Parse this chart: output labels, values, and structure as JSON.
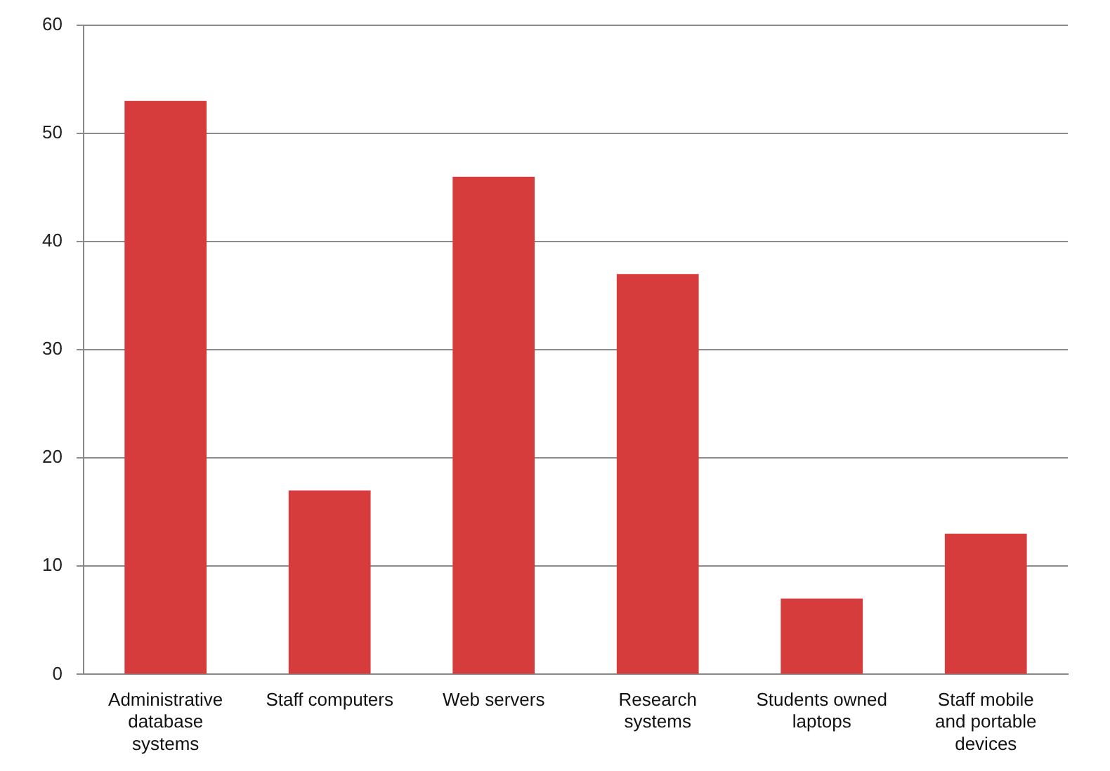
{
  "chart_data": {
    "type": "bar",
    "categories": [
      "Administrative database systems",
      "Staff computers",
      "Web servers",
      "Research systems",
      "Students owned laptops",
      "Staff mobile and portable devices"
    ],
    "values": [
      53,
      17,
      46,
      37,
      7,
      13
    ],
    "color": "#d63c3c",
    "ylim": [
      0,
      60
    ],
    "yticks": [
      0,
      10,
      20,
      30,
      40,
      50,
      60
    ],
    "grid": "y",
    "legend": false
  }
}
